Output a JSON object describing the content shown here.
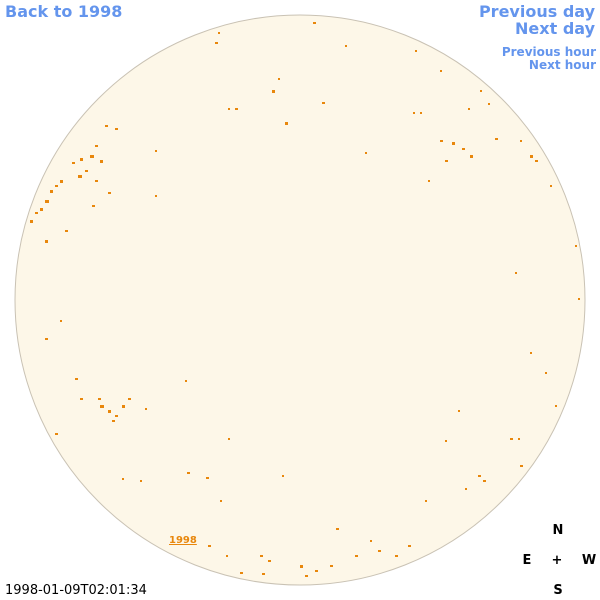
{
  "navigation": {
    "back": "Back to 1998",
    "previous_day": "Previous day",
    "next_day": "Next day",
    "previous_hour": "Previous hour",
    "next_hour": "Next hour"
  },
  "disk_label": "1998",
  "timestamp": "1998-01-09T02:01:34",
  "compass": {
    "north": "N",
    "east": "E",
    "center": "+",
    "west": "W",
    "south": "S"
  }
}
